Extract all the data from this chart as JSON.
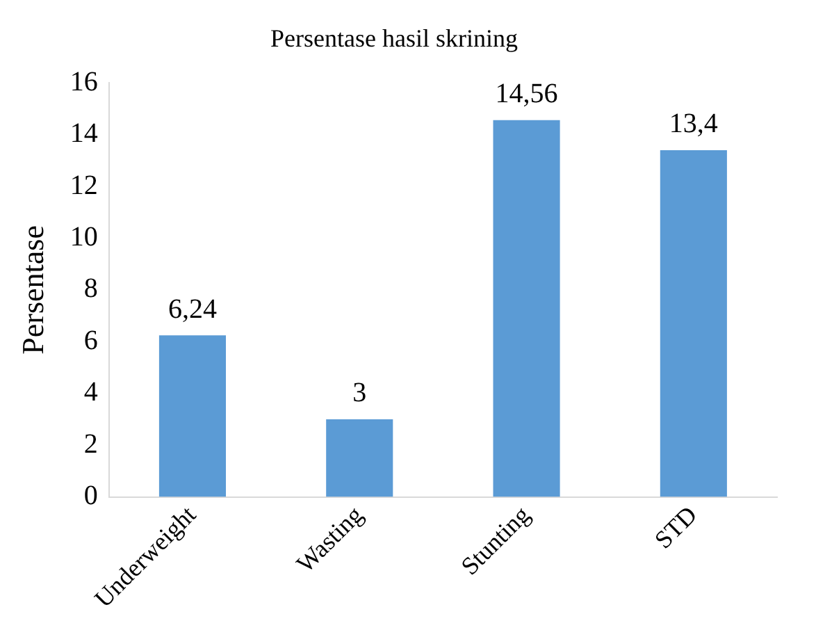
{
  "chart_data": {
    "type": "bar",
    "title": "Persentase hasil skrining",
    "ylabel": "Persentase",
    "categories": [
      "Underweight",
      "Wasting",
      "Stunting",
      "STD"
    ],
    "values": [
      6.24,
      3,
      14.56,
      13.4
    ],
    "value_labels": [
      "6,24",
      "3",
      "14,56",
      "13,4"
    ],
    "color": "#5b9bd5",
    "ylim": [
      0,
      16
    ],
    "yticks": [
      0,
      2,
      4,
      6,
      8,
      10,
      12,
      14,
      16
    ],
    "grid": false,
    "legend": false
  }
}
